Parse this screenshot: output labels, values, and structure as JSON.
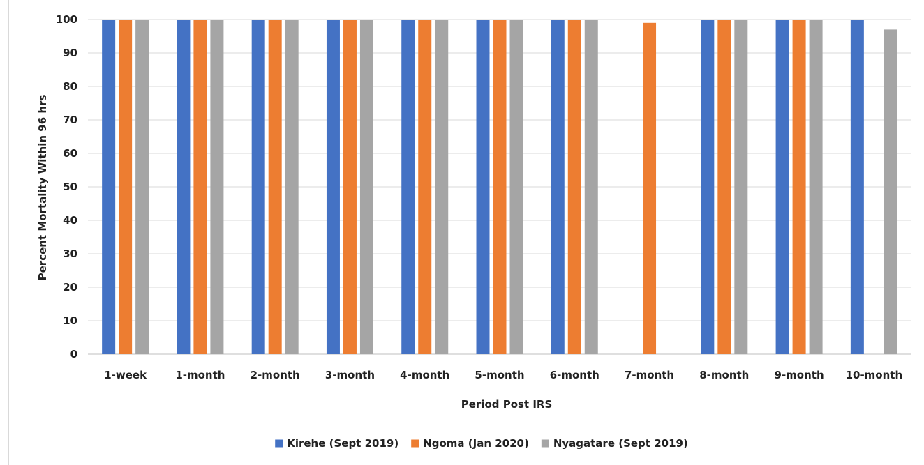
{
  "chart_data": {
    "type": "bar",
    "title": "",
    "xlabel": "Period Post IRS",
    "ylabel": "Percent Mortality Within 96 hrs",
    "ylim": [
      0,
      100
    ],
    "yticks": [
      0,
      10,
      20,
      30,
      40,
      50,
      60,
      70,
      80,
      90,
      100
    ],
    "grid": true,
    "legend_position": "bottom",
    "categories": [
      "1-week",
      "1-month",
      "2-month",
      "3-month",
      "4-month",
      "5-month",
      "6-month",
      "7-month",
      "8-month",
      "9-month",
      "10-month"
    ],
    "series": [
      {
        "name": "Kirehe (Sept 2019)",
        "color": "#4472c4",
        "values": [
          100,
          100,
          100,
          100,
          100,
          100,
          100,
          null,
          100,
          100,
          100
        ]
      },
      {
        "name": "Ngoma (Jan 2020)",
        "color": "#ed7d31",
        "values": [
          100,
          100,
          100,
          100,
          100,
          100,
          100,
          99,
          100,
          100,
          null
        ]
      },
      {
        "name": "Nyagatare (Sept 2019)",
        "color": "#a5a5a5",
        "values": [
          100,
          100,
          100,
          100,
          100,
          100,
          100,
          null,
          100,
          100,
          97
        ]
      }
    ]
  }
}
